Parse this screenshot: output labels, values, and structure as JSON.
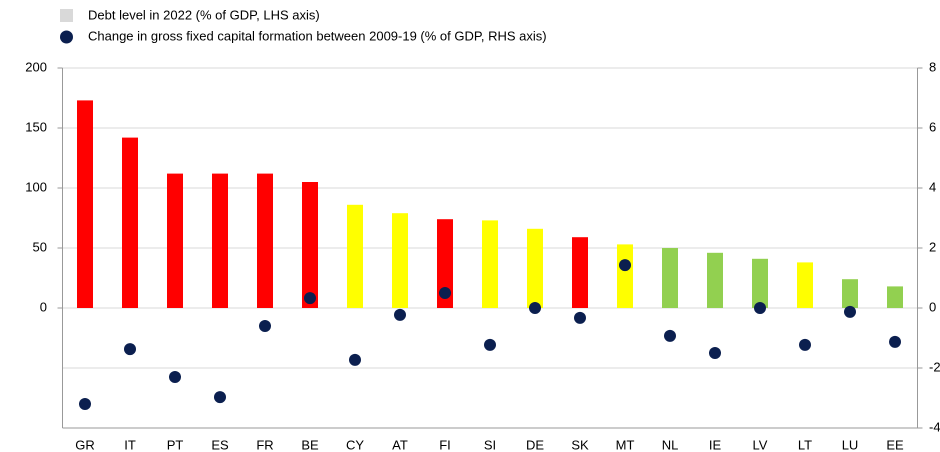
{
  "chart_data": {
    "type": "bar",
    "categories": [
      "GR",
      "IT",
      "PT",
      "ES",
      "FR",
      "BE",
      "CY",
      "AT",
      "FI",
      "SI",
      "DE",
      "SK",
      "MT",
      "NL",
      "IE",
      "LV",
      "LT",
      "LU",
      "EE"
    ],
    "series": [
      {
        "name": "Debt level in 2022 (% of GDP, LHS axis)",
        "color": "#d9d9d9",
        "bar_colors": [
          "#ff0000",
          "#ff0000",
          "#ff0000",
          "#ff0000",
          "#ff0000",
          "#ff0000",
          "#ffff00",
          "#ffff00",
          "#ff0000",
          "#ffff00",
          "#ffff00",
          "#ff0000",
          "#ffff00",
          "#92d050",
          "#92d050",
          "#92d050",
          "#ffff00",
          "#92d050",
          "#92d050"
        ],
        "values": [
          173,
          142,
          112,
          112,
          112,
          105,
          86,
          79,
          74,
          73,
          66,
          59,
          53,
          50,
          46,
          41,
          38,
          24,
          18
        ]
      },
      {
        "name": "Change in gross fixed capital formation between 2009-19 (% of GDP, RHS axis)",
        "color": "#0b1f4f",
        "axis": "y2",
        "values": [
          -3.2,
          -1.37,
          -2.3,
          -2.97,
          -0.6,
          0.33,
          -1.73,
          -0.23,
          0.5,
          -1.23,
          0,
          -0.33,
          1.43,
          -0.93,
          -1.5,
          0,
          -1.23,
          -0.13,
          -1.13
        ]
      }
    ],
    "ylim": [
      -100,
      200
    ],
    "yticks": [
      0,
      50,
      100,
      150,
      200
    ],
    "y2lim": [
      -4,
      8
    ],
    "y2ticks": [
      -4,
      -2,
      0,
      2,
      4,
      6,
      8
    ],
    "grid": true
  }
}
